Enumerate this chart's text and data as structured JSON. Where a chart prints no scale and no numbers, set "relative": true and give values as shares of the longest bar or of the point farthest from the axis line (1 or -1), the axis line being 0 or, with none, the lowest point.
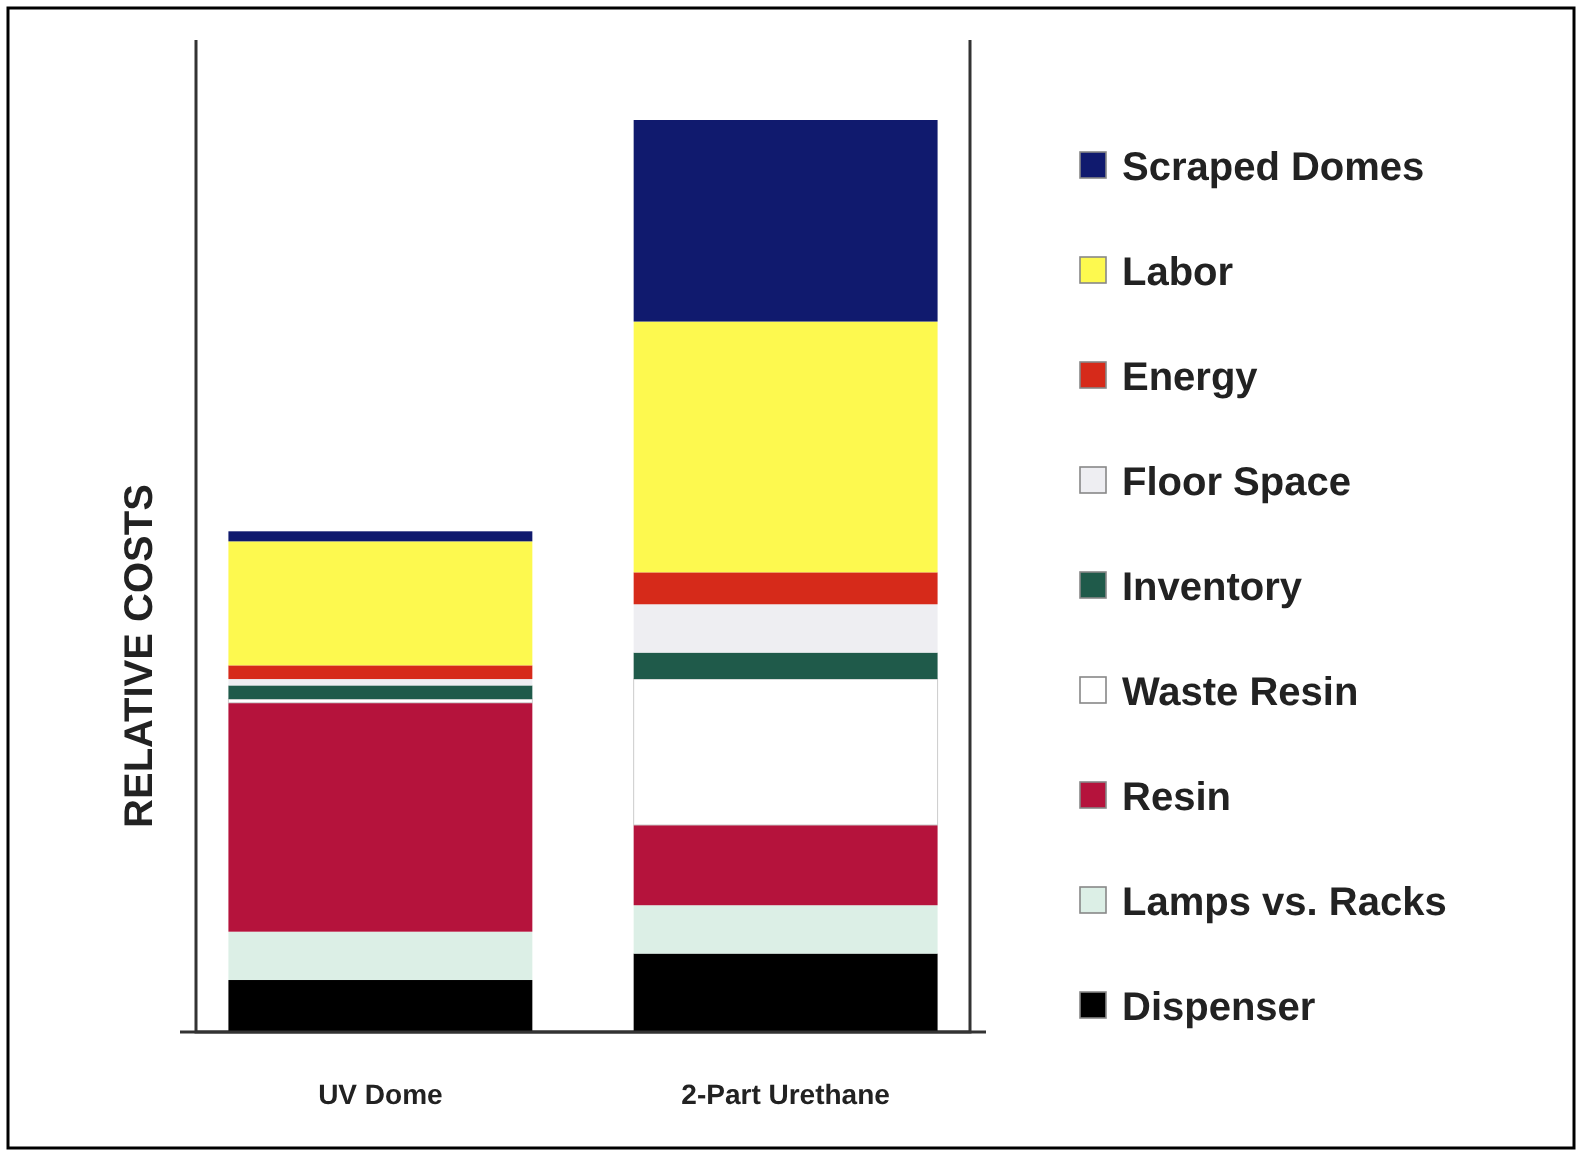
{
  "chart_data": {
    "type": "bar",
    "stacked": true,
    "relative": true,
    "ylabel": "RELATIVE COSTS",
    "categories": [
      "UV Dome",
      "2-Part Urethane"
    ],
    "legend": "right",
    "series": [
      {
        "name": "Dispenser",
        "color": "#000000",
        "values": [
          0.057,
          0.086
        ]
      },
      {
        "name": "Lamps vs. Racks",
        "color": "#dcefe6",
        "values": [
          0.053,
          0.053
        ]
      },
      {
        "name": "Resin",
        "color": "#b5133c",
        "values": [
          0.251,
          0.088
        ]
      },
      {
        "name": "Waste Resin",
        "color": "#ffffff",
        "values": [
          0.004,
          0.16
        ]
      },
      {
        "name": "Inventory",
        "color": "#1f5a4a",
        "values": [
          0.015,
          0.029
        ]
      },
      {
        "name": "Floor Space",
        "color": "#eeeef2",
        "values": [
          0.007,
          0.053
        ]
      },
      {
        "name": "Energy",
        "color": "#d62a1a",
        "values": [
          0.015,
          0.035
        ]
      },
      {
        "name": "Labor",
        "color": "#fdf94f",
        "values": [
          0.136,
          0.275
        ]
      },
      {
        "name": "Scraped Domes",
        "color": "#101a6e",
        "values": [
          0.011,
          0.221
        ]
      }
    ]
  }
}
